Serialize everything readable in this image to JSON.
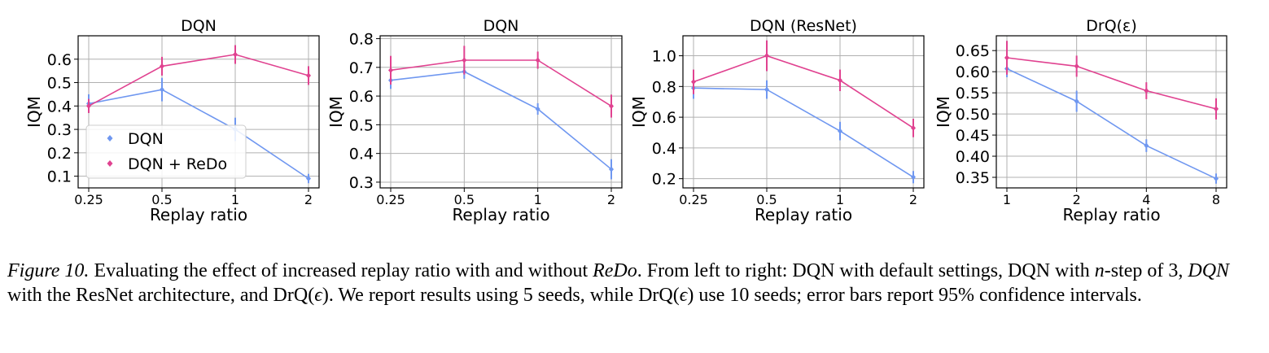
{
  "colors": {
    "dqn": "#6f97f0",
    "redo": "#e04290",
    "grid": "#b0b0b0",
    "axis": "#000000"
  },
  "legend": {
    "items": [
      "DQN",
      "DQN + ReDo"
    ],
    "placement": "lower-left (first panel)"
  },
  "chart_data": [
    {
      "type": "line",
      "title": "DQN",
      "xlabel": "Replay ratio",
      "ylabel": "IQM",
      "categories": [
        "0.25",
        "0.5",
        "1",
        "2"
      ],
      "ylim": [
        0.05,
        0.7
      ],
      "yticks": [
        "0.1",
        "0.2",
        "0.3",
        "0.4",
        "0.5",
        "0.6"
      ],
      "grid": true,
      "series": [
        {
          "name": "DQN",
          "values": [
            0.41,
            0.47,
            0.3,
            0.09
          ],
          "err": [
            0.04,
            0.05,
            0.05,
            0.02
          ]
        },
        {
          "name": "DQN + ReDo",
          "values": [
            0.4,
            0.57,
            0.62,
            0.53
          ],
          "err": [
            0.03,
            0.04,
            0.04,
            0.04
          ]
        }
      ]
    },
    {
      "type": "line",
      "title": "DQN",
      "xlabel": "Replay ratio",
      "ylabel": "IQM",
      "categories": [
        "0.25",
        "0.5",
        "1",
        "2"
      ],
      "ylim": [
        0.28,
        0.81
      ],
      "yticks": [
        "0.3",
        "0.4",
        "0.5",
        "0.6",
        "0.7",
        "0.8"
      ],
      "grid": true,
      "series": [
        {
          "name": "DQN",
          "values": [
            0.655,
            0.685,
            0.555,
            0.345
          ],
          "err": [
            0.03,
            0.025,
            0.02,
            0.035
          ]
        },
        {
          "name": "DQN + ReDo",
          "values": [
            0.69,
            0.725,
            0.725,
            0.565
          ],
          "err": [
            0.05,
            0.05,
            0.03,
            0.04
          ]
        }
      ]
    },
    {
      "type": "line",
      "title": "DQN (ResNet)",
      "xlabel": "Replay ratio",
      "ylabel": "IQM",
      "categories": [
        "0.25",
        "0.5",
        "1",
        "2"
      ],
      "ylim": [
        0.14,
        1.13
      ],
      "yticks": [
        "0.2",
        "0.4",
        "0.6",
        "0.8",
        "1.0"
      ],
      "grid": true,
      "series": [
        {
          "name": "DQN",
          "values": [
            0.79,
            0.78,
            0.51,
            0.21
          ],
          "err": [
            0.07,
            0.06,
            0.06,
            0.04
          ]
        },
        {
          "name": "DQN + ReDo",
          "values": [
            0.83,
            1.0,
            0.84,
            0.53
          ],
          "err": [
            0.08,
            0.1,
            0.07,
            0.06
          ]
        }
      ]
    },
    {
      "type": "line",
      "title": "DrQ(ε)",
      "xlabel": "Replay ratio",
      "ylabel": "IQM",
      "categories": [
        "1",
        "2",
        "4",
        "8"
      ],
      "ylim": [
        0.325,
        0.685
      ],
      "yticks": [
        "0.35",
        "0.40",
        "0.45",
        "0.50",
        "0.55",
        "0.60",
        "0.65"
      ],
      "grid": true,
      "series": [
        {
          "name": "DQN",
          "values": [
            0.607,
            0.53,
            0.425,
            0.347
          ],
          "err": [
            0.02,
            0.025,
            0.015,
            0.012
          ]
        },
        {
          "name": "DQN + ReDo",
          "values": [
            0.633,
            0.613,
            0.555,
            0.512
          ],
          "err": [
            0.04,
            0.025,
            0.02,
            0.025
          ]
        }
      ]
    }
  ],
  "caption": {
    "figure_label": "Figure 10.",
    "text_1": " Evaluating the effect of increased replay ratio with and without ",
    "redo": "ReDo",
    "text_2": ". From left to right: DQN with default settings, DQN with ",
    "n": "n",
    "text_3": "-step of 3, ",
    "dqn_italic": "DQN",
    "text_4": " with the ResNet architecture, and DrQ(",
    "eps_1": "ϵ",
    "text_5": "). We report results using 5 seeds, while DrQ(",
    "eps_2": "ϵ",
    "text_6": ") use 10 seeds; error bars report 95% confidence intervals."
  }
}
